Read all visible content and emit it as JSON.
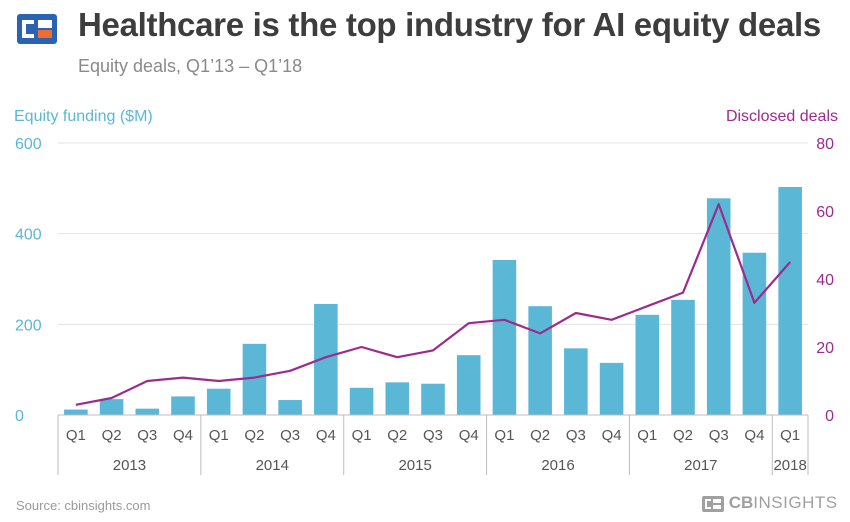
{
  "header": {
    "title": "Healthcare is the top industry for AI equity deals",
    "subtitle": "Equity deals, Q1’13 – Q1’18"
  },
  "footer": {
    "source": "Source: cbinsights.com",
    "brand_cb": "CB",
    "brand_insights": "INSIGHTS"
  },
  "colors": {
    "bar": "#5bb7d6",
    "line": "#9b2c8e",
    "left_axis": "#5bb7d6",
    "right_axis": "#9b2c8e",
    "logo_blue": "#2b63b3",
    "logo_orange": "#f26b2f"
  },
  "chart_data": {
    "type": "bar",
    "categories": [
      "Q1",
      "Q2",
      "Q3",
      "Q4",
      "Q1",
      "Q2",
      "Q3",
      "Q4",
      "Q1",
      "Q2",
      "Q3",
      "Q4",
      "Q1",
      "Q2",
      "Q3",
      "Q4",
      "Q1",
      "Q2",
      "Q3",
      "Q4",
      "Q1"
    ],
    "years": [
      {
        "label": "2013",
        "count": 4
      },
      {
        "label": "2014",
        "count": 4
      },
      {
        "label": "2015",
        "count": 4
      },
      {
        "label": "2016",
        "count": 4
      },
      {
        "label": "2017",
        "count": 4
      },
      {
        "label": "2018",
        "count": 1
      }
    ],
    "ylabel": "Equity funding ($M)",
    "y2label": "Disclosed deals",
    "ylim": [
      0,
      600
    ],
    "y2lim": [
      0,
      80
    ],
    "yticks": [
      "0",
      "200",
      "400",
      "600"
    ],
    "y2ticks": [
      "0",
      "20",
      "40",
      "60",
      "80"
    ],
    "grid": true,
    "series": [
      {
        "type": "bar",
        "axis": "left",
        "values": [
          12,
          35,
          14,
          41,
          58,
          157,
          33,
          245,
          60,
          72,
          69,
          132,
          342,
          240,
          147,
          115,
          221,
          254,
          478,
          358,
          503
        ]
      },
      {
        "type": "line",
        "axis": "right",
        "values": [
          3,
          5,
          10,
          11,
          10,
          11,
          13,
          17,
          20,
          17,
          19,
          27,
          28,
          24,
          30,
          28,
          32,
          36,
          62,
          33,
          45
        ]
      }
    ]
  }
}
